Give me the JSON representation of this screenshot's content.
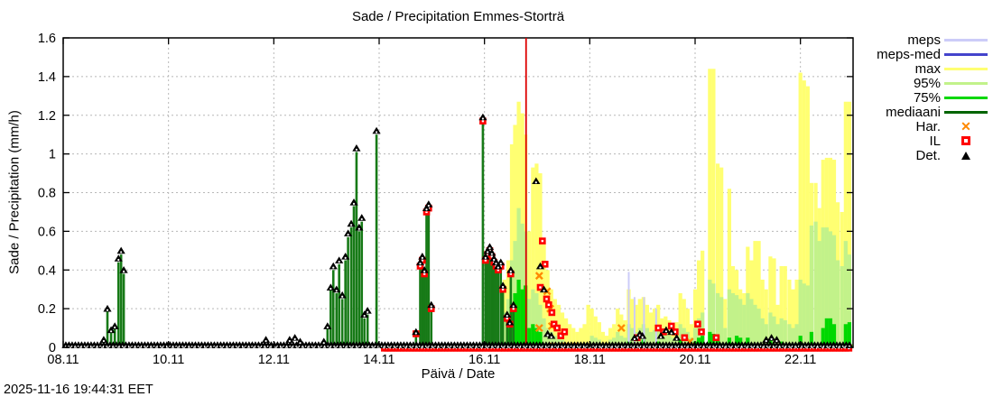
{
  "chart_data": {
    "type": "bar",
    "title": "Sade / Precipitation  Emmes-Storträ",
    "ylabel": "Sade / Precipitation (mm/h)",
    "xlabel": "Päivä / Date",
    "timestamp": "2025-11-16 19:44:31 EET",
    "ylim": [
      0,
      1.6
    ],
    "xlim_days": [
      8,
      23
    ],
    "grid": "dotted",
    "legend_position": "right-outside",
    "ytick_values": [
      0,
      0.2,
      0.4,
      0.6,
      0.8,
      1,
      1.2,
      1.4,
      1.6
    ],
    "ytick_labels": [
      "0",
      "0.2",
      "0.4",
      "0.6",
      "0.8",
      "1",
      "1.2",
      "1.4",
      "1.6"
    ],
    "xticks": [
      {
        "day": 8,
        "label": "08.11"
      },
      {
        "day": 10,
        "label": "10.11"
      },
      {
        "day": 12,
        "label": "12.11"
      },
      {
        "day": 14,
        "label": "14.11"
      },
      {
        "day": 16,
        "label": "16.11"
      },
      {
        "day": 18,
        "label": "18.11"
      },
      {
        "day": 20,
        "label": "20.11"
      },
      {
        "day": 22,
        "label": "22.11"
      }
    ],
    "now_line_day": 16.79,
    "colors": {
      "background": "#ffffff",
      "grid": "#b8b8b8",
      "border": "#000000",
      "now_line": "#dd0000",
      "meps": "#ccccf8",
      "meps_med": "#4444cc",
      "max": "#ffff72",
      "p95": "#c2f28a",
      "p75": "#00d800",
      "mediaani": "#006400",
      "obs_green": "#177a17",
      "har": "#ff8800",
      "il": "#ff0000",
      "det": "#000000"
    },
    "legend": [
      {
        "label": "meps",
        "sample": "line",
        "color": "#ccccf8"
      },
      {
        "label": "meps-med",
        "sample": "line",
        "color": "#4444cc"
      },
      {
        "label": "max",
        "sample": "line",
        "color": "#ffff72"
      },
      {
        "label": "95%",
        "sample": "line",
        "color": "#c2f28a"
      },
      {
        "label": "75%",
        "sample": "line",
        "color": "#00d800"
      },
      {
        "label": "mediaani",
        "sample": "line",
        "color": "#006400"
      },
      {
        "label": "Har.",
        "sample": "x",
        "color": "#ff8800"
      },
      {
        "label": "IL",
        "sample": "square",
        "color": "#ff0000"
      },
      {
        "label": "Det.",
        "sample": "triangle",
        "color": "#000000"
      }
    ],
    "max_bars": [
      [
        16.38,
        0.35
      ],
      [
        16.45,
        0.45
      ],
      [
        16.52,
        1.05
      ],
      [
        16.58,
        1.15
      ],
      [
        16.65,
        1.27
      ],
      [
        16.72,
        1.21
      ],
      [
        16.78,
        1.1
      ],
      [
        16.85,
        0.6
      ],
      [
        16.92,
        0.93
      ],
      [
        16.99,
        0.95
      ],
      [
        17.06,
        0.9
      ],
      [
        17.13,
        0.55
      ],
      [
        17.2,
        0.4
      ],
      [
        17.27,
        0.3
      ],
      [
        17.34,
        0.25
      ],
      [
        17.41,
        0.22
      ],
      [
        17.48,
        0.18
      ],
      [
        17.55,
        0.15
      ],
      [
        17.62,
        0.12
      ],
      [
        17.69,
        0.1
      ],
      [
        17.76,
        0.08
      ],
      [
        17.83,
        0.1
      ],
      [
        17.9,
        0.12
      ],
      [
        17.97,
        0.22
      ],
      [
        18.04,
        0.2
      ],
      [
        18.11,
        0.16
      ],
      [
        18.18,
        0.13
      ],
      [
        18.25,
        0.08
      ],
      [
        18.32,
        0.06
      ],
      [
        18.39,
        0.1
      ],
      [
        18.46,
        0.12
      ],
      [
        18.53,
        0.2
      ],
      [
        18.6,
        0.17
      ],
      [
        18.67,
        0.14
      ],
      [
        18.74,
        0.3
      ],
      [
        18.81,
        0.25
      ],
      [
        18.88,
        0.22
      ],
      [
        18.95,
        0.25
      ],
      [
        19.02,
        0.26
      ],
      [
        19.09,
        0.22
      ],
      [
        19.16,
        0.18
      ],
      [
        19.23,
        0.2
      ],
      [
        19.3,
        0.22
      ],
      [
        19.37,
        0.15
      ],
      [
        19.44,
        0.16
      ],
      [
        19.51,
        0.14
      ],
      [
        19.58,
        0.12
      ],
      [
        19.65,
        0.13
      ],
      [
        19.72,
        0.28
      ],
      [
        19.79,
        0.25
      ],
      [
        19.86,
        0.2
      ],
      [
        19.93,
        0.12
      ],
      [
        20.0,
        0.3
      ],
      [
        20.07,
        0.45
      ],
      [
        20.14,
        0.5
      ],
      [
        20.28,
        1.44
      ],
      [
        20.35,
        1.44
      ],
      [
        20.43,
        0.95
      ],
      [
        20.5,
        0.93
      ],
      [
        20.57,
        0.25
      ],
      [
        20.65,
        0.82
      ],
      [
        20.72,
        0.42
      ],
      [
        20.79,
        0.4
      ],
      [
        20.86,
        0.3
      ],
      [
        20.93,
        0.28
      ],
      [
        21.0,
        0.52
      ],
      [
        21.07,
        0.45
      ],
      [
        21.14,
        0.55
      ],
      [
        21.21,
        0.55
      ],
      [
        21.28,
        0.35
      ],
      [
        21.35,
        0.3
      ],
      [
        21.43,
        0.47
      ],
      [
        21.5,
        0.46
      ],
      [
        21.57,
        0.22
      ],
      [
        21.64,
        0.42
      ],
      [
        21.71,
        0.42
      ],
      [
        21.79,
        0.35
      ],
      [
        21.86,
        0.3
      ],
      [
        21.93,
        0.35
      ],
      [
        22.0,
        1.42
      ],
      [
        22.07,
        1.38
      ],
      [
        22.14,
        1.35
      ],
      [
        22.21,
        0.85
      ],
      [
        22.29,
        0.85
      ],
      [
        22.36,
        0.72
      ],
      [
        22.43,
        0.97
      ],
      [
        22.5,
        0.98
      ],
      [
        22.57,
        0.98
      ],
      [
        22.64,
        0.97
      ],
      [
        22.71,
        0.75
      ],
      [
        22.79,
        0.7
      ],
      [
        22.86,
        1.27
      ],
      [
        22.93,
        1.27
      ]
    ],
    "p95_bars": [
      [
        16.38,
        0.18
      ],
      [
        16.45,
        0.25
      ],
      [
        16.52,
        0.45
      ],
      [
        16.58,
        0.55
      ],
      [
        16.65,
        0.72
      ],
      [
        16.72,
        0.64
      ],
      [
        16.78,
        0.6
      ],
      [
        16.85,
        0.25
      ],
      [
        16.92,
        0.3
      ],
      [
        16.99,
        0.28
      ],
      [
        17.06,
        0.22
      ],
      [
        17.13,
        0.15
      ],
      [
        17.2,
        0.1
      ],
      [
        17.27,
        0.08
      ],
      [
        17.34,
        0.06
      ],
      [
        17.41,
        0.05
      ],
      [
        17.48,
        0.04
      ],
      [
        18.04,
        0.06
      ],
      [
        18.11,
        0.05
      ],
      [
        18.18,
        0.04
      ],
      [
        18.39,
        0.04
      ],
      [
        18.46,
        0.05
      ],
      [
        18.53,
        0.08
      ],
      [
        18.6,
        0.06
      ],
      [
        18.67,
        0.05
      ],
      [
        18.74,
        0.12
      ],
      [
        18.81,
        0.1
      ],
      [
        18.88,
        0.08
      ],
      [
        18.95,
        0.1
      ],
      [
        19.02,
        0.12
      ],
      [
        19.09,
        0.1
      ],
      [
        19.16,
        0.08
      ],
      [
        19.23,
        0.09
      ],
      [
        19.3,
        0.1
      ],
      [
        19.37,
        0.06
      ],
      [
        19.44,
        0.07
      ],
      [
        19.51,
        0.06
      ],
      [
        19.58,
        0.05
      ],
      [
        19.65,
        0.05
      ],
      [
        19.72,
        0.12
      ],
      [
        19.79,
        0.1
      ],
      [
        19.86,
        0.08
      ],
      [
        19.93,
        0.05
      ],
      [
        20.0,
        0.1
      ],
      [
        20.07,
        0.15
      ],
      [
        20.14,
        0.18
      ],
      [
        20.28,
        0.35
      ],
      [
        20.35,
        0.33
      ],
      [
        20.43,
        0.28
      ],
      [
        20.5,
        0.26
      ],
      [
        20.57,
        0.1
      ],
      [
        20.65,
        0.3
      ],
      [
        20.72,
        0.28
      ],
      [
        20.79,
        0.27
      ],
      [
        20.86,
        0.25
      ],
      [
        20.93,
        0.22
      ],
      [
        21.0,
        0.28
      ],
      [
        21.07,
        0.25
      ],
      [
        21.14,
        0.22
      ],
      [
        21.21,
        0.2
      ],
      [
        21.28,
        0.15
      ],
      [
        21.35,
        0.12
      ],
      [
        21.43,
        0.18
      ],
      [
        21.5,
        0.16
      ],
      [
        21.57,
        0.12
      ],
      [
        21.64,
        0.15
      ],
      [
        21.71,
        0.14
      ],
      [
        21.79,
        0.12
      ],
      [
        21.86,
        0.1
      ],
      [
        21.93,
        0.12
      ],
      [
        22.0,
        0.35
      ],
      [
        22.07,
        0.33
      ],
      [
        22.14,
        0.32
      ],
      [
        22.21,
        0.63
      ],
      [
        22.29,
        0.65
      ],
      [
        22.36,
        0.55
      ],
      [
        22.43,
        0.62
      ],
      [
        22.5,
        0.62
      ],
      [
        22.57,
        0.6
      ],
      [
        22.64,
        0.58
      ],
      [
        22.71,
        0.45
      ],
      [
        22.79,
        0.42
      ],
      [
        22.86,
        0.55
      ],
      [
        22.93,
        0.48
      ]
    ],
    "p75_bars": [
      [
        16.45,
        0.1
      ],
      [
        16.52,
        0.2
      ],
      [
        16.58,
        0.28
      ],
      [
        16.65,
        0.35
      ],
      [
        16.72,
        0.3
      ],
      [
        16.78,
        0.32
      ],
      [
        16.85,
        0.1
      ],
      [
        16.92,
        0.12
      ],
      [
        16.99,
        0.1
      ],
      [
        17.06,
        0.08
      ],
      [
        18.74,
        0.03
      ],
      [
        19.02,
        0.04
      ],
      [
        19.3,
        0.03
      ],
      [
        19.72,
        0.04
      ],
      [
        20.0,
        0.03
      ],
      [
        20.07,
        0.05
      ],
      [
        20.14,
        0.06
      ],
      [
        20.28,
        0.08
      ],
      [
        20.35,
        0.07
      ],
      [
        20.43,
        0.06
      ],
      [
        20.65,
        0.05
      ],
      [
        20.79,
        0.06
      ],
      [
        20.86,
        0.05
      ],
      [
        21.0,
        0.05
      ],
      [
        21.43,
        0.04
      ],
      [
        21.64,
        0.03
      ],
      [
        22.0,
        0.06
      ],
      [
        22.21,
        0.08
      ],
      [
        22.43,
        0.1
      ],
      [
        22.5,
        0.15
      ],
      [
        22.57,
        0.15
      ],
      [
        22.64,
        0.12
      ],
      [
        22.86,
        0.12
      ],
      [
        22.93,
        0.13
      ]
    ],
    "obs_green_bars": [
      [
        8.77,
        0.03
      ],
      [
        8.84,
        0.19
      ],
      [
        8.91,
        0.08
      ],
      [
        8.98,
        0.1
      ],
      [
        9.05,
        0.44
      ],
      [
        9.1,
        0.48
      ],
      [
        9.15,
        0.38
      ],
      [
        13.02,
        0.1
      ],
      [
        13.08,
        0.3
      ],
      [
        13.13,
        0.4
      ],
      [
        13.19,
        0.28
      ],
      [
        13.24,
        0.43
      ],
      [
        13.3,
        0.25
      ],
      [
        13.36,
        0.45
      ],
      [
        13.41,
        0.57
      ],
      [
        13.47,
        0.62
      ],
      [
        13.52,
        0.73
      ],
      [
        13.57,
        1.01
      ],
      [
        13.62,
        0.6
      ],
      [
        13.67,
        0.65
      ],
      [
        13.72,
        0.15
      ],
      [
        13.78,
        0.17
      ],
      [
        13.95,
        1.1
      ],
      [
        14.7,
        0.07
      ],
      [
        14.78,
        0.42
      ],
      [
        14.82,
        0.45
      ],
      [
        14.86,
        0.38
      ],
      [
        14.9,
        0.7
      ],
      [
        14.94,
        0.72
      ],
      [
        14.99,
        0.2
      ],
      [
        15.97,
        1.17
      ],
      [
        16.02,
        0.45
      ],
      [
        16.06,
        0.48
      ],
      [
        16.1,
        0.5
      ],
      [
        16.14,
        0.47
      ],
      [
        16.18,
        0.44
      ],
      [
        16.22,
        0.42
      ],
      [
        16.26,
        0.4
      ],
      [
        16.31,
        0.42
      ],
      [
        16.35,
        0.3
      ],
      [
        16.43,
        0.15
      ],
      [
        16.48,
        0.12
      ],
      [
        16.5,
        0.38
      ],
      [
        16.55,
        0.2
      ]
    ],
    "meps_lines": [
      [
        18.74,
        0.39
      ],
      [
        18.85,
        0.26
      ],
      [
        19.03,
        0.26
      ],
      [
        19.26,
        0.2
      ]
    ],
    "median_line": {
      "from": 8.0,
      "to": 23.0,
      "value": 0.01
    },
    "det_points": [
      [
        8.77,
        0.04
      ],
      [
        8.84,
        0.2
      ],
      [
        8.91,
        0.09
      ],
      [
        8.98,
        0.11
      ],
      [
        9.05,
        0.46
      ],
      [
        9.1,
        0.5
      ],
      [
        9.15,
        0.4
      ],
      [
        11.85,
        0.04
      ],
      [
        12.3,
        0.04
      ],
      [
        12.4,
        0.05
      ],
      [
        12.5,
        0.03
      ],
      [
        12.95,
        0.03
      ],
      [
        13.02,
        0.11
      ],
      [
        13.08,
        0.31
      ],
      [
        13.13,
        0.42
      ],
      [
        13.19,
        0.3
      ],
      [
        13.24,
        0.45
      ],
      [
        13.3,
        0.27
      ],
      [
        13.36,
        0.47
      ],
      [
        13.41,
        0.59
      ],
      [
        13.47,
        0.64
      ],
      [
        13.52,
        0.75
      ],
      [
        13.57,
        1.03
      ],
      [
        13.62,
        0.62
      ],
      [
        13.67,
        0.67
      ],
      [
        13.72,
        0.17
      ],
      [
        13.78,
        0.19
      ],
      [
        13.95,
        1.12
      ],
      [
        14.7,
        0.08
      ],
      [
        14.78,
        0.44
      ],
      [
        14.82,
        0.47
      ],
      [
        14.86,
        0.4
      ],
      [
        14.9,
        0.72
      ],
      [
        14.94,
        0.74
      ],
      [
        14.99,
        0.22
      ],
      [
        15.97,
        1.19
      ],
      [
        16.02,
        0.47
      ],
      [
        16.06,
        0.5
      ],
      [
        16.1,
        0.52
      ],
      [
        16.14,
        0.49
      ],
      [
        16.18,
        0.46
      ],
      [
        16.22,
        0.44
      ],
      [
        16.26,
        0.42
      ],
      [
        16.31,
        0.44
      ],
      [
        16.35,
        0.32
      ],
      [
        16.43,
        0.17
      ],
      [
        16.48,
        0.13
      ],
      [
        16.5,
        0.4
      ],
      [
        16.55,
        0.22
      ],
      [
        16.98,
        0.86
      ],
      [
        17.06,
        0.42
      ],
      [
        17.13,
        0.3
      ],
      [
        17.2,
        0.07
      ],
      [
        17.27,
        0.06
      ],
      [
        18.85,
        0.05
      ],
      [
        18.95,
        0.07
      ],
      [
        19.0,
        0.06
      ],
      [
        19.35,
        0.06
      ],
      [
        19.45,
        0.09
      ],
      [
        19.55,
        0.08
      ],
      [
        19.65,
        0.05
      ],
      [
        21.35,
        0.04
      ],
      [
        21.45,
        0.05
      ],
      [
        21.55,
        0.04
      ]
    ],
    "det_baseline": {
      "from": 8.05,
      "to": 22.95,
      "step": 0.06,
      "value": 0.012
    },
    "il_points": [
      [
        14.7,
        0.07
      ],
      [
        14.78,
        0.42
      ],
      [
        14.82,
        0.45
      ],
      [
        14.86,
        0.38
      ],
      [
        14.9,
        0.7
      ],
      [
        14.94,
        0.72
      ],
      [
        14.99,
        0.2
      ],
      [
        15.97,
        1.17
      ],
      [
        16.02,
        0.45
      ],
      [
        16.06,
        0.48
      ],
      [
        16.1,
        0.5
      ],
      [
        16.14,
        0.47
      ],
      [
        16.18,
        0.44
      ],
      [
        16.22,
        0.42
      ],
      [
        16.26,
        0.4
      ],
      [
        16.31,
        0.42
      ],
      [
        16.35,
        0.3
      ],
      [
        16.43,
        0.15
      ],
      [
        16.48,
        0.12
      ],
      [
        16.5,
        0.38
      ],
      [
        16.55,
        0.2
      ],
      [
        17.06,
        0.31
      ],
      [
        17.1,
        0.55
      ],
      [
        17.15,
        0.43
      ],
      [
        17.18,
        0.25
      ],
      [
        17.22,
        0.22
      ],
      [
        17.28,
        0.18
      ],
      [
        17.32,
        0.12
      ],
      [
        17.38,
        0.1
      ],
      [
        17.45,
        0.06
      ],
      [
        17.52,
        0.08
      ],
      [
        18.9,
        0.05
      ],
      [
        19.3,
        0.1
      ],
      [
        19.4,
        0.08
      ],
      [
        19.55,
        0.11
      ],
      [
        19.62,
        0.08
      ],
      [
        19.8,
        0.05
      ],
      [
        20.05,
        0.12
      ],
      [
        20.12,
        0.08
      ],
      [
        20.4,
        0.05
      ]
    ],
    "il_baseline": {
      "from": 14.1,
      "to": 22.97,
      "step": 0.06,
      "value": -0.004
    },
    "har_points": [
      [
        17.04,
        0.37
      ],
      [
        17.04,
        0.1
      ],
      [
        17.19,
        0.29
      ],
      [
        17.25,
        0.2
      ],
      [
        17.28,
        0.11
      ],
      [
        18.6,
        0.1
      ],
      [
        19.9,
        0.03
      ]
    ],
    "har_baseline": [
      {
        "from": 17.3,
        "to": 17.75,
        "step": 0.08,
        "value": 0.005
      },
      {
        "from": 19.85,
        "to": 20.0,
        "step": 0.08,
        "value": 0.005
      }
    ]
  }
}
